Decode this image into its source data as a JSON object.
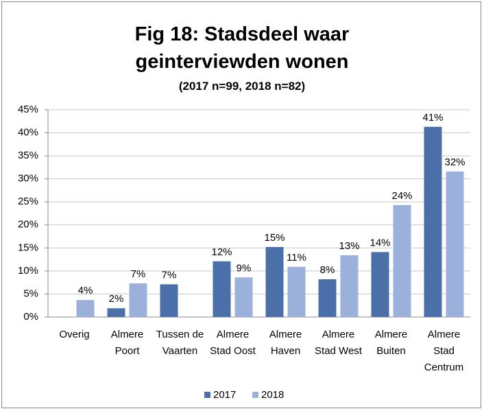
{
  "chart_data": {
    "type": "bar",
    "title": "Fig 18: Stadsdeel waar geinterviewden wonen",
    "subtitle": "(2017 n=99, 2018 n=82)",
    "categories": [
      "Overig",
      "Almere Poort",
      "Tussen de Vaarten",
      "Almere Stad Oost",
      "Almere Haven",
      "Almere Stad West",
      "Almere Buiten",
      "Almere Stad Centrum"
    ],
    "series": [
      {
        "name": "2017",
        "color": "#4a6fa9",
        "values": [
          null,
          1.9,
          7.1,
          12.1,
          15.2,
          8.2,
          14.1,
          41.3
        ],
        "value_labels": [
          null,
          "2%",
          "7%",
          "12%",
          "15%",
          "8%",
          "14%",
          "41%"
        ]
      },
      {
        "name": "2018",
        "color": "#9bb0db",
        "values": [
          3.7,
          7.3,
          null,
          8.6,
          10.9,
          13.4,
          24.3,
          31.6
        ],
        "value_labels": [
          "4%",
          "7%",
          null,
          "9%",
          "11%",
          "13%",
          "24%",
          "32%"
        ]
      }
    ],
    "ylim": [
      0,
      45
    ],
    "yticks": [
      {
        "value": 0,
        "label": "0%"
      },
      {
        "value": 5,
        "label": "5%"
      },
      {
        "value": 10,
        "label": "10%"
      },
      {
        "value": 15,
        "label": "15%"
      },
      {
        "value": 20,
        "label": "20%"
      },
      {
        "value": 25,
        "label": "25%"
      },
      {
        "value": 30,
        "label": "30%"
      },
      {
        "value": 35,
        "label": "35%"
      },
      {
        "value": 40,
        "label": "40%"
      },
      {
        "value": 45,
        "label": "45%"
      }
    ],
    "grid": true,
    "legend": "bottom"
  }
}
